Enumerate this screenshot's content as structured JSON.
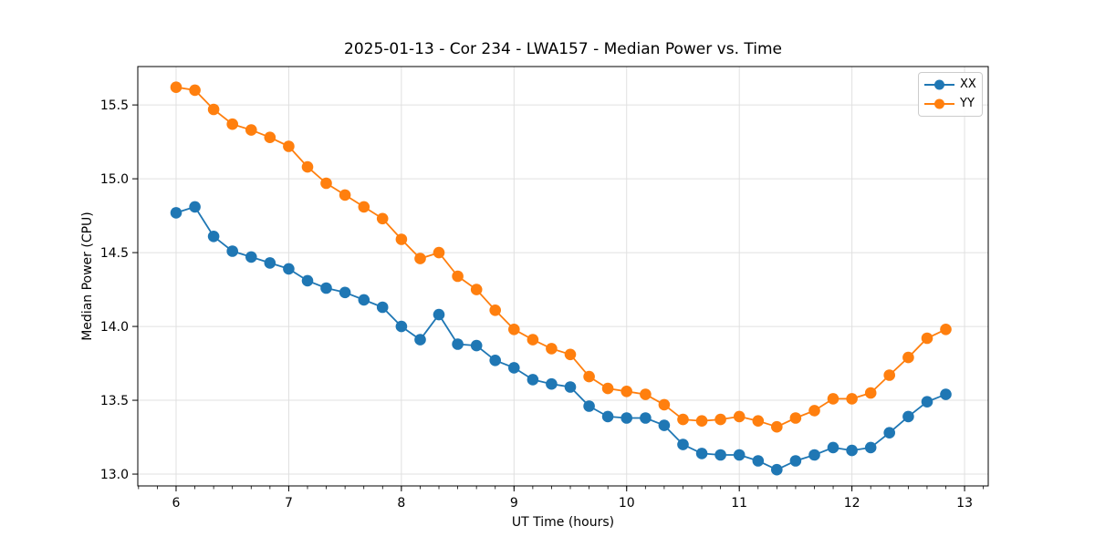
{
  "chart_data": {
    "type": "line",
    "title": "2025-01-13 - Cor 234 - LWA157 - Median Power vs. Time",
    "xlabel": "UT Time (hours)",
    "ylabel": "Median Power (CPU)",
    "legend_position": "upper right",
    "grid": true,
    "xlim": [
      5.66,
      13.21
    ],
    "ylim": [
      12.92,
      15.76
    ],
    "x_ticks": [
      6,
      7,
      8,
      9,
      10,
      11,
      12,
      13
    ],
    "x_tick_labels": [
      "6",
      "7",
      "8",
      "9",
      "10",
      "11",
      "12",
      "13"
    ],
    "x_minor_tick_step": 0.166667,
    "y_ticks": [
      13.0,
      13.5,
      14.0,
      14.5,
      15.0,
      15.5
    ],
    "y_tick_labels": [
      "13.0",
      "13.5",
      "14.0",
      "14.5",
      "15.0",
      "15.5"
    ],
    "x": [
      6.0,
      6.167,
      6.333,
      6.5,
      6.667,
      6.833,
      7.0,
      7.167,
      7.333,
      7.5,
      7.667,
      7.833,
      8.0,
      8.167,
      8.333,
      8.5,
      8.667,
      8.833,
      9.0,
      9.167,
      9.333,
      9.5,
      9.667,
      9.833,
      10.0,
      10.167,
      10.333,
      10.5,
      10.667,
      10.833,
      11.0,
      11.167,
      11.333,
      11.5,
      11.667,
      11.833,
      12.0,
      12.167,
      12.333,
      12.5,
      12.667,
      12.833
    ],
    "series": [
      {
        "name": "XX",
        "color": "#1f77b4",
        "values": [
          14.77,
          14.81,
          14.61,
          14.51,
          14.47,
          14.43,
          14.39,
          14.31,
          14.26,
          14.23,
          14.18,
          14.13,
          14.0,
          13.91,
          14.08,
          13.88,
          13.87,
          13.77,
          13.72,
          13.64,
          13.61,
          13.59,
          13.46,
          13.39,
          13.38,
          13.38,
          13.33,
          13.2,
          13.14,
          13.13,
          13.13,
          13.09,
          13.03,
          13.09,
          13.13,
          13.18,
          13.16,
          13.18,
          13.28,
          13.39,
          13.49,
          13.54
        ]
      },
      {
        "name": "YY",
        "color": "#ff7f0e",
        "values": [
          15.62,
          15.6,
          15.47,
          15.37,
          15.33,
          15.28,
          15.22,
          15.08,
          14.97,
          14.89,
          14.81,
          14.73,
          14.59,
          14.46,
          14.5,
          14.34,
          14.25,
          14.11,
          13.98,
          13.91,
          13.85,
          13.81,
          13.66,
          13.58,
          13.56,
          13.54,
          13.47,
          13.37,
          13.36,
          13.37,
          13.39,
          13.36,
          13.32,
          13.38,
          13.43,
          13.51,
          13.51,
          13.55,
          13.67,
          13.79,
          13.92,
          13.98
        ]
      }
    ],
    "colors": {
      "grid": "#e0e0e0",
      "spine": "#000000",
      "background": "#ffffff"
    }
  }
}
